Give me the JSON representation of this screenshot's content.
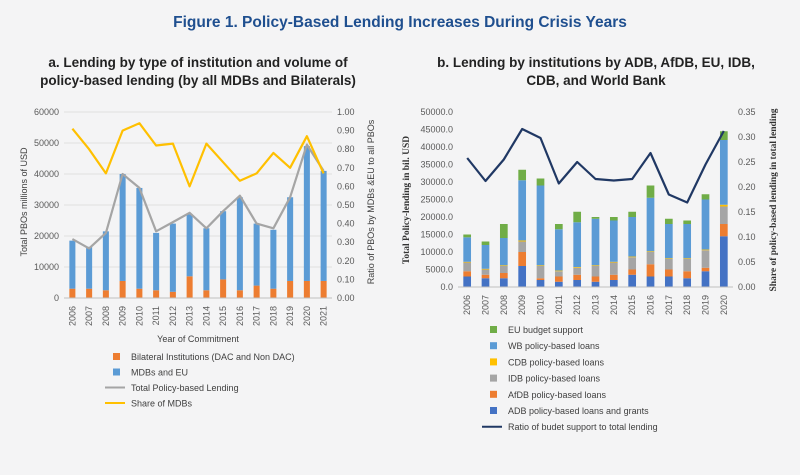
{
  "figure_title": "Figure 1. Policy-Based Lending Increases During Crisis Years",
  "colors": {
    "orange": "#ed7d31",
    "blue": "#5b9bd5",
    "gray": "#a5a5a5",
    "yellow": "#ffc000",
    "green": "#70ad47",
    "darkblue": "#4472c4",
    "navy": "#203864"
  },
  "chart_data": [
    {
      "type": "bar",
      "title_line1": "a. Lending by type of institution and volume of",
      "title_line2": "policy-based lending (by all MDBs and Bilaterals)",
      "xlabel": "Year of Commitment",
      "ylabel": "Total PBOs millions of USD",
      "y2label": "Ratio of PBOs by MDBs &EU to all PBOs",
      "ylim": [
        0,
        60000
      ],
      "y2lim": [
        0,
        1.0
      ],
      "yticks": [
        "0",
        "10000",
        "20000",
        "30000",
        "40000",
        "50000",
        "60000"
      ],
      "y2ticks": [
        "0.00",
        "0.10",
        "0.20",
        "0.30",
        "0.40",
        "0.50",
        "0.60",
        "0.70",
        "0.80",
        "0.90",
        "1.00"
      ],
      "categories": [
        "2006",
        "2007",
        "2008",
        "2009",
        "2010",
        "2011",
        "2012",
        "2013",
        "2014",
        "2015",
        "2016",
        "2017",
        "2018",
        "2019",
        "2020",
        "2021"
      ],
      "series": [
        {
          "name": "Bilateral Institutions (DAC and Non DAC)",
          "kind": "bar",
          "color": "#ed7d31",
          "values": [
            3000,
            3000,
            2500,
            5500,
            3000,
            2500,
            2000,
            7000,
            2500,
            6000,
            2500,
            4000,
            3000,
            5500,
            5500,
            5500
          ]
        },
        {
          "name": "MDBs and EU",
          "kind": "bar",
          "color": "#5b9bd5",
          "values": [
            15500,
            13500,
            19000,
            34500,
            32500,
            18500,
            22000,
            20000,
            20000,
            22000,
            30000,
            20000,
            19000,
            27000,
            43500,
            35500
          ]
        },
        {
          "name": "Total Policy-based Lending",
          "kind": "line",
          "color": "#a5a5a5",
          "axis": "left",
          "values": [
            19000,
            16000,
            21000,
            40000,
            35500,
            21500,
            24500,
            27500,
            22500,
            28000,
            33000,
            24000,
            22500,
            32500,
            49500,
            41000
          ]
        },
        {
          "name": "Share of MDBs",
          "kind": "line",
          "color": "#ffc000",
          "axis": "right",
          "values": [
            0.91,
            0.8,
            0.67,
            0.9,
            0.94,
            0.82,
            0.83,
            0.6,
            0.83,
            0.73,
            0.63,
            0.67,
            0.78,
            0.7,
            0.87,
            0.67
          ]
        }
      ]
    },
    {
      "type": "bar",
      "title_line1": "b. Lending by institutions by ADB, AfDB, EU, IDB,",
      "title_line2": "CDB, and World Bank",
      "ylabel": "Total Policy-lending in bil. USD",
      "y2label": "Share of policy-based lending in total lending",
      "ylim": [
        0,
        50000
      ],
      "y2lim": [
        0,
        0.35
      ],
      "yticks": [
        "0.0",
        "5000.0",
        "10000.0",
        "15000.0",
        "20000.0",
        "25000.0",
        "30000.0",
        "35000.0",
        "40000.0",
        "45000.0",
        "50000.0"
      ],
      "y2ticks": [
        "0.00",
        "0.05",
        "0.10",
        "0.15",
        "0.20",
        "0.25",
        "0.30",
        "0.35"
      ],
      "categories": [
        "2006",
        "2007",
        "2008",
        "2009",
        "2010",
        "2011",
        "2012",
        "2013",
        "2014",
        "2015",
        "2016",
        "2017",
        "2018",
        "2019",
        "2020"
      ],
      "series": [
        {
          "name": "ADB policy-based loans and grants",
          "kind": "bar",
          "color": "#4472c4",
          "values": [
            3000,
            2500,
            2500,
            6000,
            2000,
            1500,
            2000,
            1500,
            2000,
            3500,
            3000,
            3000,
            2500,
            4500,
            14500
          ]
        },
        {
          "name": "AfDB policy-based loans",
          "kind": "bar",
          "color": "#ed7d31",
          "values": [
            1500,
            1000,
            1500,
            4000,
            500,
            1500,
            1500,
            1500,
            1500,
            1500,
            3500,
            2000,
            2000,
            1000,
            3500
          ]
        },
        {
          "name": "IDB policy-based loans",
          "kind": "bar",
          "color": "#a5a5a5",
          "values": [
            2500,
            1500,
            2000,
            3000,
            3500,
            1500,
            2000,
            3000,
            3500,
            3500,
            3500,
            3000,
            3500,
            5000,
            5000
          ]
        },
        {
          "name": "CDB policy-based loans",
          "kind": "bar",
          "color": "#ffc000",
          "values": [
            200,
            200,
            200,
            300,
            200,
            200,
            200,
            200,
            200,
            200,
            200,
            200,
            200,
            200,
            500
          ]
        },
        {
          "name": "WB policy-based loans",
          "kind": "bar",
          "color": "#5b9bd5",
          "values": [
            7000,
            6800,
            7800,
            17200,
            22800,
            11800,
            12800,
            13300,
            11800,
            11300,
            15300,
            9800,
            9800,
            14300,
            18500
          ]
        },
        {
          "name": "EU  budget support",
          "kind": "bar",
          "color": "#70ad47",
          "values": [
            800,
            1000,
            4000,
            3000,
            2000,
            1500,
            3000,
            500,
            1000,
            1500,
            3500,
            1500,
            1000,
            1500,
            2500
          ]
        },
        {
          "name": "Ratio of budet support to total lending",
          "kind": "line",
          "color": "#203864",
          "axis": "right",
          "values": [
            0.258,
            0.212,
            0.255,
            0.316,
            0.298,
            0.207,
            0.25,
            0.216,
            0.213,
            0.216,
            0.268,
            0.185,
            0.169,
            0.245,
            0.312
          ]
        }
      ]
    }
  ]
}
